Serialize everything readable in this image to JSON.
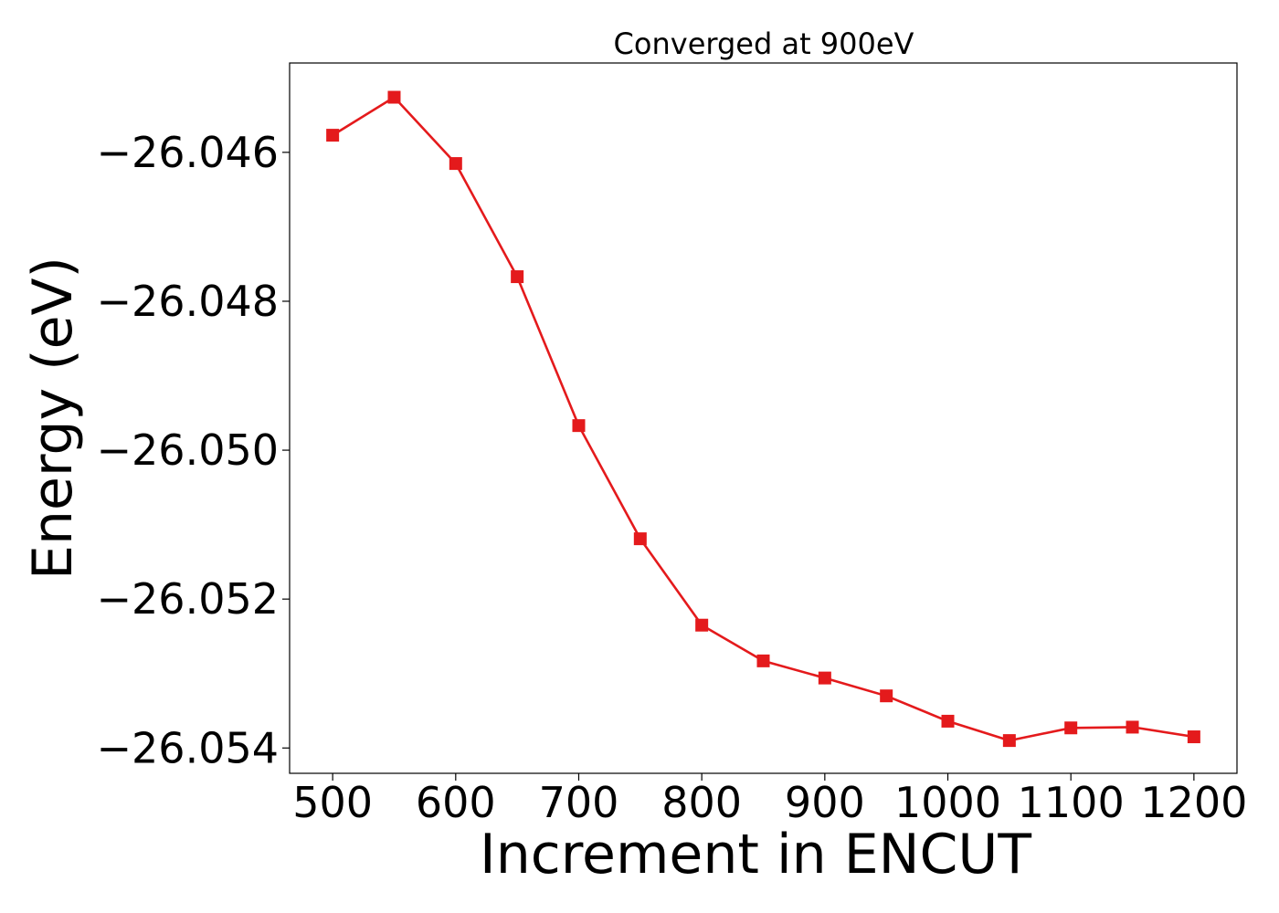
{
  "chart_data": {
    "type": "line",
    "title": "Converged at 900eV",
    "xlabel": "Increment in ENCUT",
    "ylabel": "Energy (eV)",
    "x": [
      500,
      550,
      600,
      650,
      700,
      750,
      800,
      850,
      900,
      950,
      1000,
      1050,
      1100,
      1150,
      1200
    ],
    "series": [
      {
        "values": [
          -26.04577,
          -26.04526,
          -26.04615,
          -26.04767,
          -26.04967,
          -26.05119,
          -26.05235,
          -26.05283,
          -26.05306,
          -26.0533,
          -26.05364,
          -26.0539,
          -26.05373,
          -26.05372,
          -26.05385
        ],
        "color": "#e41a1c",
        "marker": "square"
      }
    ],
    "xlim": [
      465,
      1235
    ],
    "ylim": [
      -26.05434,
      -26.0448
    ],
    "xticks": [
      500,
      600,
      700,
      800,
      900,
      1000,
      1100,
      1200
    ],
    "yticks": [
      -26.046,
      -26.048,
      -26.05,
      -26.052,
      -26.054
    ],
    "xtick_labels": [
      "500",
      "600",
      "700",
      "800",
      "900",
      "1000",
      "1100",
      "1200"
    ],
    "ytick_labels": [
      "−26.046",
      "−26.048",
      "−26.050",
      "−26.052",
      "−26.054"
    ],
    "grid": false,
    "legend": "none"
  }
}
